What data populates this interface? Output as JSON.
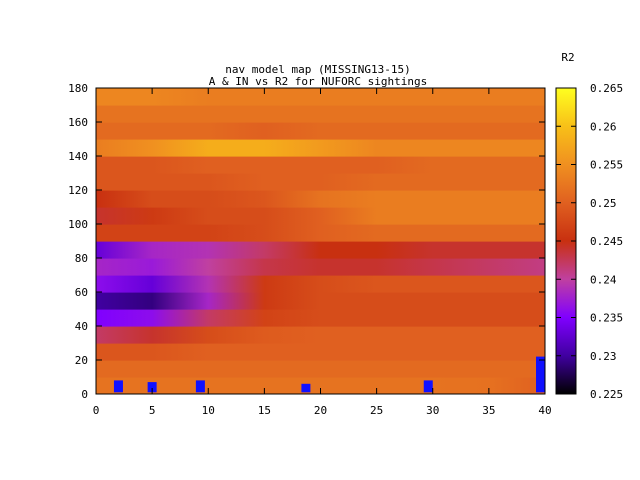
{
  "chart_data": {
    "type": "heatmap",
    "title_line1": "nav model map (MISSING13-15)",
    "title_line2": "A & IN vs R2 for NUFORC sightings",
    "xlabel": "",
    "ylabel": "",
    "colorbar_label": "R2",
    "xlim": [
      0,
      40
    ],
    "ylim": [
      0,
      180
    ],
    "xticks": [
      "0",
      "5",
      "10",
      "15",
      "20",
      "25",
      "30",
      "35",
      "40"
    ],
    "yticks": [
      "0",
      "20",
      "40",
      "60",
      "80",
      "100",
      "120",
      "140",
      "160",
      "180"
    ],
    "zlim": [
      0.225,
      0.265
    ],
    "colorbar_ticks": [
      "0.225",
      "0.23",
      "0.235",
      "0.24",
      "0.245",
      "0.25",
      "0.255",
      "0.26",
      "0.265"
    ],
    "grid": false,
    "colormap": [
      "#000000",
      "#4000a0",
      "#8000ff",
      "#c040a0",
      "#c83010",
      "#e06020",
      "#f09020",
      "#f8c018",
      "#ffff20"
    ],
    "y_rows": [
      5,
      15,
      25,
      35,
      45,
      55,
      65,
      75,
      85,
      95,
      105,
      115,
      125,
      135,
      145,
      155,
      165,
      175
    ],
    "x_cols": [
      0,
      5,
      10,
      15,
      20,
      25,
      30,
      35,
      40
    ],
    "values": [
      [
        0.252,
        0.252,
        0.252,
        0.252,
        0.252,
        0.252,
        0.252,
        0.2518,
        0.25
      ],
      [
        0.251,
        0.251,
        0.251,
        0.251,
        0.251,
        0.251,
        0.251,
        0.251,
        0.251
      ],
      [
        0.249,
        0.249,
        0.25,
        0.25,
        0.25,
        0.25,
        0.25,
        0.25,
        0.25
      ],
      [
        0.242,
        0.244,
        0.248,
        0.2495,
        0.25,
        0.25,
        0.25,
        0.25,
        0.25
      ],
      [
        0.235,
        0.236,
        0.242,
        0.247,
        0.248,
        0.248,
        0.248,
        0.248,
        0.248
      ],
      [
        0.23,
        0.229,
        0.238,
        0.246,
        0.248,
        0.248,
        0.248,
        0.248,
        0.248
      ],
      [
        0.236,
        0.233,
        0.239,
        0.246,
        0.248,
        0.249,
        0.249,
        0.249,
        0.249
      ],
      [
        0.238,
        0.237,
        0.24,
        0.243,
        0.244,
        0.244,
        0.243,
        0.242,
        0.241
      ],
      [
        0.233,
        0.238,
        0.239,
        0.242,
        0.245,
        0.245,
        0.244,
        0.244,
        0.244
      ],
      [
        0.247,
        0.247,
        0.247,
        0.248,
        0.25,
        0.251,
        0.251,
        0.251,
        0.251
      ],
      [
        0.244,
        0.246,
        0.248,
        0.248,
        0.25,
        0.253,
        0.253,
        0.253,
        0.253
      ],
      [
        0.245,
        0.248,
        0.248,
        0.249,
        0.252,
        0.253,
        0.253,
        0.253,
        0.253
      ],
      [
        0.249,
        0.249,
        0.249,
        0.25,
        0.25,
        0.251,
        0.251,
        0.251,
        0.251
      ],
      [
        0.249,
        0.249,
        0.25,
        0.25,
        0.25,
        0.25,
        0.251,
        0.251,
        0.251
      ],
      [
        0.253,
        0.255,
        0.258,
        0.258,
        0.256,
        0.254,
        0.254,
        0.254,
        0.254
      ],
      [
        0.251,
        0.251,
        0.251,
        0.25,
        0.251,
        0.251,
        0.251,
        0.251,
        0.251
      ],
      [
        0.252,
        0.252,
        0.252,
        0.252,
        0.252,
        0.252,
        0.252,
        0.252,
        0.252
      ],
      [
        0.254,
        0.254,
        0.253,
        0.253,
        0.253,
        0.253,
        0.253,
        0.253,
        0.253
      ]
    ],
    "markers": {
      "color": "#1010ff",
      "bars": [
        {
          "x": 2.0,
          "y0": 1,
          "y1": 8
        },
        {
          "x": 5.0,
          "y0": 1,
          "y1": 7
        },
        {
          "x": 9.3,
          "y0": 1,
          "y1": 8
        },
        {
          "x": 18.7,
          "y0": 1,
          "y1": 6
        },
        {
          "x": 29.6,
          "y0": 1,
          "y1": 8
        },
        {
          "x": 39.6,
          "y0": 1,
          "y1": 22
        }
      ]
    }
  }
}
